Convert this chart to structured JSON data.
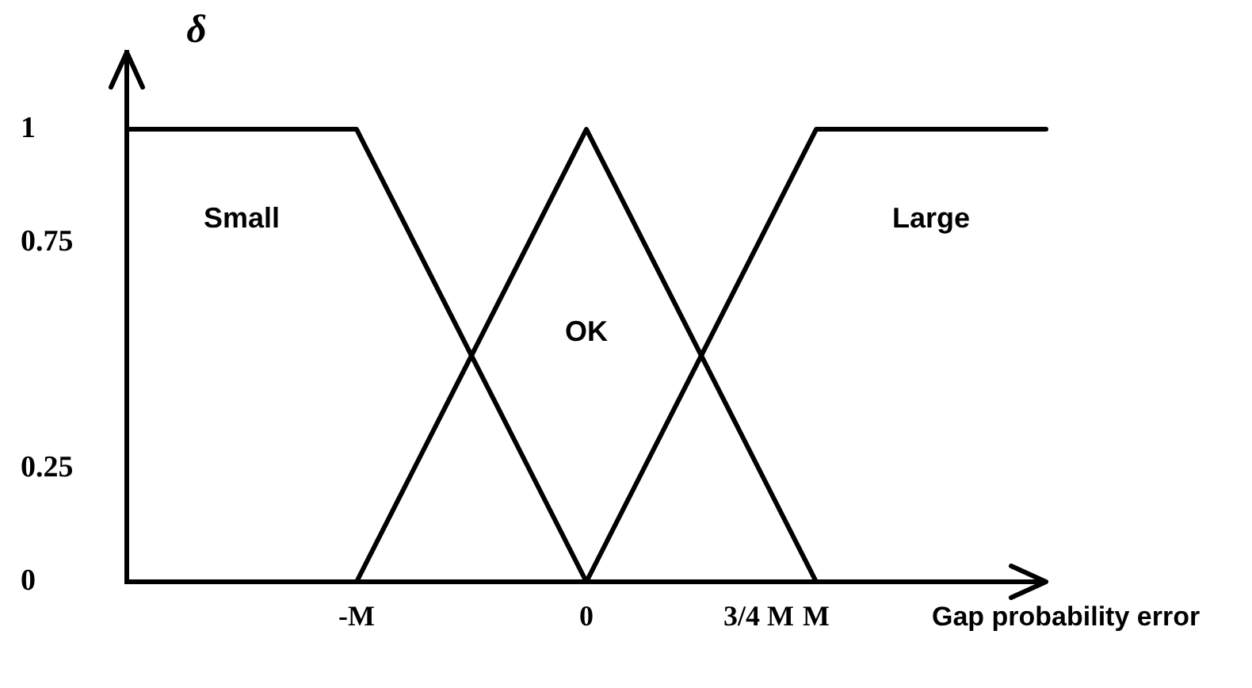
{
  "chart_data": {
    "type": "line",
    "xlabel": "Gap probability error",
    "ylabel": "δ",
    "categories": [
      null,
      null,
      null,
      null,
      "-M",
      null,
      null,
      null,
      "0",
      null,
      null,
      "3/4 M",
      "M",
      null,
      null,
      null,
      null
    ],
    "series": [
      {
        "name": "Small",
        "color": "#000000",
        "values": [
          1,
          1,
          1,
          1,
          1,
          0.75,
          0.5,
          0.25,
          0,
          null,
          null,
          null,
          null,
          null,
          null,
          null,
          null
        ]
      },
      {
        "name": "OK",
        "color": "#000000",
        "values": [
          null,
          null,
          null,
          null,
          0,
          0.25,
          0.5,
          0.75,
          1,
          0.75,
          0.5,
          0.25,
          0,
          null,
          null,
          null,
          null
        ]
      },
      {
        "name": "Large",
        "color": "#000000",
        "values": [
          null,
          null,
          null,
          null,
          null,
          null,
          null,
          null,
          0,
          0.25,
          0.5,
          0.75,
          1,
          1,
          1,
          1,
          1
        ]
      }
    ],
    "ylim": [
      0,
      1.17
    ],
    "yticks": [
      0,
      0.25,
      0.75,
      1
    ],
    "grid": false,
    "legend": false,
    "marker": "none",
    "line_style": "solid"
  }
}
